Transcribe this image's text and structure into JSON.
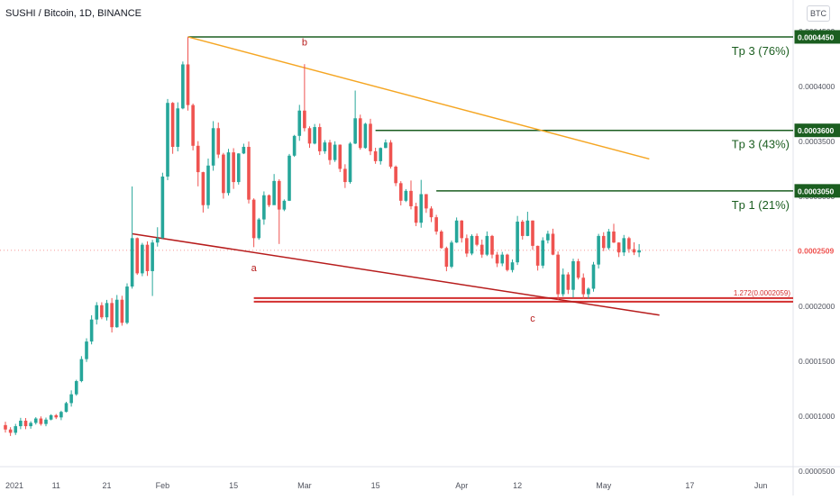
{
  "header": {
    "title": "SUSHI / Bitcoin, 1D, BINANCE",
    "currency_badge": "BTC"
  },
  "colors": {
    "up": "#26a69a",
    "down": "#ef5350",
    "target": "#1b5e20",
    "resistance": "#f5a623",
    "support": "#b71c1c",
    "fib": "#d32f2f",
    "current": "#ef5350"
  },
  "price_axis": {
    "ticks": [
      "0.0004500",
      "0.0004000",
      "0.0003500",
      "0.0003000",
      "0.0002500",
      "0.0002000",
      "0.0001500",
      "0.0001000",
      "0.0000500"
    ],
    "tick_values": [
      0.00045,
      0.0004,
      0.00035,
      0.0003,
      0.00025,
      0.0002,
      0.00015,
      0.0001,
      5e-05
    ]
  },
  "time_axis": {
    "ticks": [
      "2021",
      "11",
      "21",
      "Feb",
      "15",
      "Mar",
      "15",
      "Apr",
      "12",
      "May",
      "17",
      "Jun"
    ]
  },
  "price_tags": [
    {
      "label": "0.0004450",
      "value": 0.000445,
      "kind": "target"
    },
    {
      "label": "0.0003600",
      "value": 0.00036,
      "kind": "target"
    },
    {
      "label": "0.0003050",
      "value": 0.000305,
      "kind": "target"
    },
    {
      "label": "0.0002509",
      "value": 0.0002509,
      "kind": "current"
    }
  ],
  "targets": [
    {
      "label": "Tp 3 (76%)",
      "price": 0.000445,
      "from_day": 36
    },
    {
      "label": "Tp 3 (43%)",
      "price": 0.00036,
      "from_day": 73
    },
    {
      "label": "Tp 1 (21%)",
      "price": 0.000305,
      "from_day": 85
    }
  ],
  "fib": {
    "label": "1.272(0.0002059)",
    "price": 0.0002059,
    "from_day": 49
  },
  "wave_labels": [
    {
      "text": "b",
      "day": 59,
      "price": 0.000437
    },
    {
      "text": "a",
      "day": 49,
      "price": 0.000232
    },
    {
      "text": "c",
      "day": 104,
      "price": 0.000186
    }
  ],
  "trendlines": [
    {
      "kind": "resistance",
      "from": [
        36,
        0.000445
      ],
      "to": [
        127,
        0.000334
      ]
    },
    {
      "kind": "support",
      "from": [
        25,
        0.000266
      ],
      "to": [
        129,
        0.000192
      ]
    }
  ],
  "chart_data": {
    "type": "candlestick",
    "title": "SUSHI / Bitcoin, 1D, BINANCE",
    "xlabel": "",
    "ylabel": "",
    "ylim": [
      4.6e-05,
      0.000472
    ],
    "xlim_days": [
      0,
      146
    ],
    "last_price": 0.0002509,
    "candles": [
      [
        0,
        9.2e-05,
        8.8e-05,
        9.51e-05,
        8.52e-05
      ],
      [
        1,
        8.8e-05,
        8.5e-05,
        9.01e-05,
        8.21e-05
      ],
      [
        2,
        8.5e-05,
        9.1e-05,
        9.31e-05,
        8.3e-05
      ],
      [
        3,
        9.1e-05,
        9.6e-05,
        9.86e-05,
        8.83e-05
      ],
      [
        4,
        9.6e-05,
        9.1e-05,
        9.84e-05,
        8.83e-05
      ],
      [
        5,
        9.1e-05,
        9.4e-05,
        9.55e-05,
        8.87e-05
      ],
      [
        6,
        9.4e-05,
        9.8e-05,
        9.92e-05,
        9.25e-05
      ],
      [
        7,
        9.8e-05,
        9.3e-05,
        9.99e-05,
        9.15e-05
      ],
      [
        8,
        9.3e-05,
        9.7e-05,
        9.88e-05,
        9.1e-05
      ],
      [
        9,
        9.7e-05,
        0.000101,
        0.0001019,
        9.63e-05
      ],
      [
        10,
        0.000101,
        9.9e-05,
        0.0001021,
        9.75e-05
      ],
      [
        11,
        9.9e-05,
        0.000104,
        0.0001051,
        9.65e-05
      ],
      [
        12,
        0.000104,
        0.000112,
        0.0001132,
        0.0001035
      ],
      [
        13,
        0.000112,
        0.00012,
        0.0001236,
        0.0001088
      ],
      [
        14,
        0.00012,
        0.000132,
        0.0001332,
        0.0001187
      ],
      [
        15,
        0.000132,
        0.000152,
        0.0001547,
        0.0001309
      ],
      [
        16,
        0.000152,
        0.000168,
        0.0001709,
        0.0001494
      ],
      [
        17,
        0.000168,
        0.000188,
        0.0001919,
        0.0001654
      ],
      [
        18,
        0.000188,
        0.000201,
        0.0002038,
        0.0001835
      ],
      [
        19,
        0.000201,
        0.00019,
        0.0002037,
        0.0001883
      ],
      [
        20,
        0.00019,
        0.000203,
        0.0002059,
        0.0001871
      ],
      [
        21,
        0.000203,
        0.000181,
        0.0002075,
        0.0001762
      ],
      [
        22,
        0.000181,
        0.000206,
        0.0002103,
        0.0001805
      ],
      [
        23,
        0.000206,
        0.000185,
        0.0002096,
        0.0001824
      ],
      [
        24,
        0.000185,
        0.000218,
        0.0002209,
        0.0001837
      ],
      [
        25,
        0.000218,
        0.000262,
        0.000309,
        0.0002161
      ],
      [
        26,
        0.000262,
        0.00023,
        0.0002626,
        0.0002286
      ],
      [
        27,
        0.00023,
        0.000256,
        0.0002577,
        0.0002274
      ],
      [
        28,
        0.000256,
        0.000232,
        0.0002591,
        0.0002277
      ],
      [
        29,
        0.000232,
        0.000258,
        0.0002604,
        0.0002094
      ],
      [
        30,
        0.000258,
        0.000262,
        0.0002719,
        0.0002543
      ],
      [
        31,
        0.000262,
        0.000318,
        0.0003215,
        0.0002616
      ],
      [
        32,
        0.000318,
        0.000385,
        0.0003885,
        0.0003147
      ],
      [
        33,
        0.000385,
        0.000345,
        0.0003857,
        0.0003387
      ],
      [
        34,
        0.000345,
        0.00038,
        0.0003855,
        0.0003409
      ],
      [
        35,
        0.00038,
        0.00042,
        0.0004226,
        0.0003792
      ],
      [
        36,
        0.00042,
        0.000383,
        0.000445,
        0.000378
      ],
      [
        37,
        0.000383,
        0.000346,
        0.0003844,
        0.0003418
      ],
      [
        38,
        0.000346,
        0.000322,
        0.0003502,
        0.0003091
      ],
      [
        39,
        0.000322,
        0.000292,
        0.0003224,
        0.0002853
      ],
      [
        40,
        0.000292,
        0.000328,
        0.0003344,
        0.0002888
      ],
      [
        41,
        0.000328,
        0.000362,
        0.0003684,
        0.0003233
      ],
      [
        42,
        0.000362,
        0.000338,
        0.0003671,
        0.0003348
      ],
      [
        43,
        0.000338,
        0.000303,
        0.0003395,
        0.0002979
      ],
      [
        44,
        0.000303,
        0.00034,
        0.0003432,
        0.0003008
      ],
      [
        45,
        0.00034,
        0.000313,
        0.0003438,
        0.0003068
      ],
      [
        46,
        0.000313,
        0.000339,
        0.0003392,
        0.0003107
      ],
      [
        47,
        0.000339,
        0.000345,
        0.0003479,
        0.0003384
      ],
      [
        48,
        0.000345,
        0.000297,
        0.0003498,
        0.0002935
      ],
      [
        49,
        0.000297,
        0.000262,
        0.0002982,
        0.0002538
      ],
      [
        50,
        0.000262,
        0.000279,
        0.0002804,
        0.0002605
      ],
      [
        51,
        0.000279,
        0.000301,
        0.0003045,
        0.0002742
      ],
      [
        52,
        0.000301,
        0.000292,
        0.0003017,
        0.0002903
      ],
      [
        53,
        0.000292,
        0.000314,
        0.0003203,
        0.0002923
      ],
      [
        54,
        0.000314,
        0.000288,
        0.0003156,
        0.0002567
      ],
      [
        55,
        0.000288,
        0.000296,
        0.0002972,
        0.0002866
      ],
      [
        56,
        0.000296,
        0.000337,
        0.0003386,
        0.0002958
      ],
      [
        57,
        0.000337,
        0.000355,
        0.0003559,
        0.0003359
      ],
      [
        58,
        0.000355,
        0.000378,
        0.0003832,
        0.0003505
      ],
      [
        59,
        0.000378,
        0.000362,
        0.0004202,
        0.0003591
      ],
      [
        60,
        0.000362,
        0.000348,
        0.0003637,
        0.0003441
      ],
      [
        61,
        0.000348,
        0.000363,
        0.0003658,
        0.0003473
      ],
      [
        62,
        0.000363,
        0.000341,
        0.0003661,
        0.0003376
      ],
      [
        63,
        0.000341,
        0.000349,
        0.0003511,
        0.0003387
      ],
      [
        64,
        0.000349,
        0.000333,
        0.0003514,
        0.0003288
      ],
      [
        65,
        0.000333,
        0.000347,
        0.0003501,
        0.0003313
      ],
      [
        66,
        0.000347,
        0.000325,
        0.0003472,
        0.0003221
      ],
      [
        67,
        0.000325,
        0.000313,
        0.0003292,
        0.0003076
      ],
      [
        68,
        0.000313,
        0.000348,
        0.0003494,
        0.0003115
      ],
      [
        69,
        0.000348,
        0.000371,
        0.0003962,
        0.0003475
      ],
      [
        70,
        0.000371,
        0.000344,
        0.0003743,
        0.0003424
      ],
      [
        71,
        0.000344,
        0.000366,
        0.0003669,
        0.0003433
      ],
      [
        72,
        0.000366,
        0.000341,
        0.0003705,
        0.0003375
      ],
      [
        73,
        0.000341,
        0.000332,
        0.0003442,
        0.0003296
      ],
      [
        74,
        0.000332,
        0.000344,
        0.0003445,
        0.0003289
      ],
      [
        75,
        0.000344,
        0.000349,
        0.0003517,
        0.0003438
      ],
      [
        76,
        0.000349,
        0.000327,
        0.0003512,
        0.0003253
      ],
      [
        77,
        0.000327,
        0.000312,
        0.0003281,
        0.0003093
      ],
      [
        78,
        0.000312,
        0.000296,
        0.0003138,
        0.0002918
      ],
      [
        79,
        0.000296,
        0.000305,
        0.0003066,
        0.0002948
      ],
      [
        80,
        0.000305,
        0.000291,
        0.0003144,
        0.0002882
      ],
      [
        81,
        0.000291,
        0.000276,
        0.0002942,
        0.0002729
      ],
      [
        82,
        0.000276,
        0.000302,
        0.000315,
        0.0002715
      ],
      [
        83,
        0.000302,
        0.000289,
        0.0003021,
        0.000285
      ],
      [
        84,
        0.000289,
        0.000281,
        0.0002911,
        0.0002766
      ],
      [
        85,
        0.000281,
        0.000268,
        0.0002832,
        0.0002652
      ],
      [
        86,
        0.000268,
        0.000253,
        0.0002694,
        0.0002523
      ],
      [
        87,
        0.000253,
        0.000236,
        0.0002543,
        0.0002319
      ],
      [
        88,
        0.000236,
        0.000258,
        0.0002598,
        0.0002346
      ],
      [
        89,
        0.000258,
        0.000278,
        0.0002808,
        0.0002576
      ],
      [
        90,
        0.000278,
        0.000262,
        0.0002784,
        0.000258
      ],
      [
        91,
        0.000262,
        0.000248,
        0.0002653,
        0.0002449
      ],
      [
        92,
        0.000248,
        0.000264,
        0.0002655,
        0.0002465
      ],
      [
        93,
        0.000264,
        0.000256,
        0.0002662,
        0.0002546
      ],
      [
        94,
        0.000256,
        0.000247,
        0.0002607,
        0.0002441
      ],
      [
        95,
        0.000247,
        0.000264,
        0.0002681,
        0.0002457
      ],
      [
        96,
        0.000264,
        0.000247,
        0.0002649,
        0.0002436
      ],
      [
        97,
        0.000247,
        0.000239,
        0.0002495,
        0.0002357
      ],
      [
        98,
        0.000239,
        0.000247,
        0.0002495,
        0.0002365
      ],
      [
        99,
        0.000247,
        0.000233,
        0.0002478,
        0.0002317
      ],
      [
        100,
        0.000233,
        0.00024,
        0.0002426,
        0.0002308
      ],
      [
        101,
        0.00024,
        0.000277,
        0.0002822,
        0.0002376
      ],
      [
        102,
        0.000277,
        0.000264,
        0.0002786,
        0.0002607
      ],
      [
        103,
        0.000264,
        0.000278,
        0.000286,
        0.0002638
      ],
      [
        104,
        0.000278,
        0.000255,
        0.0002782,
        0.0002513
      ],
      [
        105,
        0.000255,
        0.000237,
        0.0002552,
        0.0002325
      ],
      [
        106,
        0.000237,
        0.00026,
        0.0002628,
        0.0002346
      ],
      [
        107,
        0.00026,
        0.000266,
        0.0002687,
        0.0002572
      ],
      [
        108,
        0.000266,
        0.000247,
        0.0002706,
        0.0002465
      ],
      [
        109,
        0.000247,
        0.000211,
        0.0002499,
        0.0002057
      ],
      [
        110,
        0.000211,
        0.000229,
        0.0002344,
        0.0002089
      ],
      [
        111,
        0.000229,
        0.000215,
        0.000231,
        0.0002112
      ],
      [
        112,
        0.000215,
        0.000241,
        0.0002433,
        0.000208
      ],
      [
        113,
        0.000241,
        0.000226,
        0.0002432,
        0.0002244
      ],
      [
        114,
        0.000226,
        0.000211,
        0.0002299,
        0.0002066
      ],
      [
        115,
        0.000211,
        0.000216,
        0.0002172,
        0.0002071
      ],
      [
        116,
        0.000216,
        0.000238,
        0.0002404,
        0.0002133
      ],
      [
        117,
        0.000238,
        0.000264,
        0.0002659,
        0.0002344
      ],
      [
        118,
        0.000264,
        0.000253,
        0.0002674,
        0.0002502
      ],
      [
        119,
        0.000253,
        0.000268,
        0.0002704,
        0.0002514
      ],
      [
        120,
        0.000268,
        0.000258,
        0.0002751,
        0.0002576
      ],
      [
        121,
        0.000258,
        0.000249,
        0.0002582,
        0.0002448
      ],
      [
        122,
        0.000249,
        0.000262,
        0.0002649,
        0.0002458
      ],
      [
        123,
        0.000262,
        0.000252,
        0.0002633,
        0.0002487
      ],
      [
        124,
        0.000252,
        0.000249,
        0.0002582,
        0.0002466
      ],
      [
        125,
        0.000249,
        0.000251,
        0.0002566,
        0.0002448
      ]
    ]
  }
}
